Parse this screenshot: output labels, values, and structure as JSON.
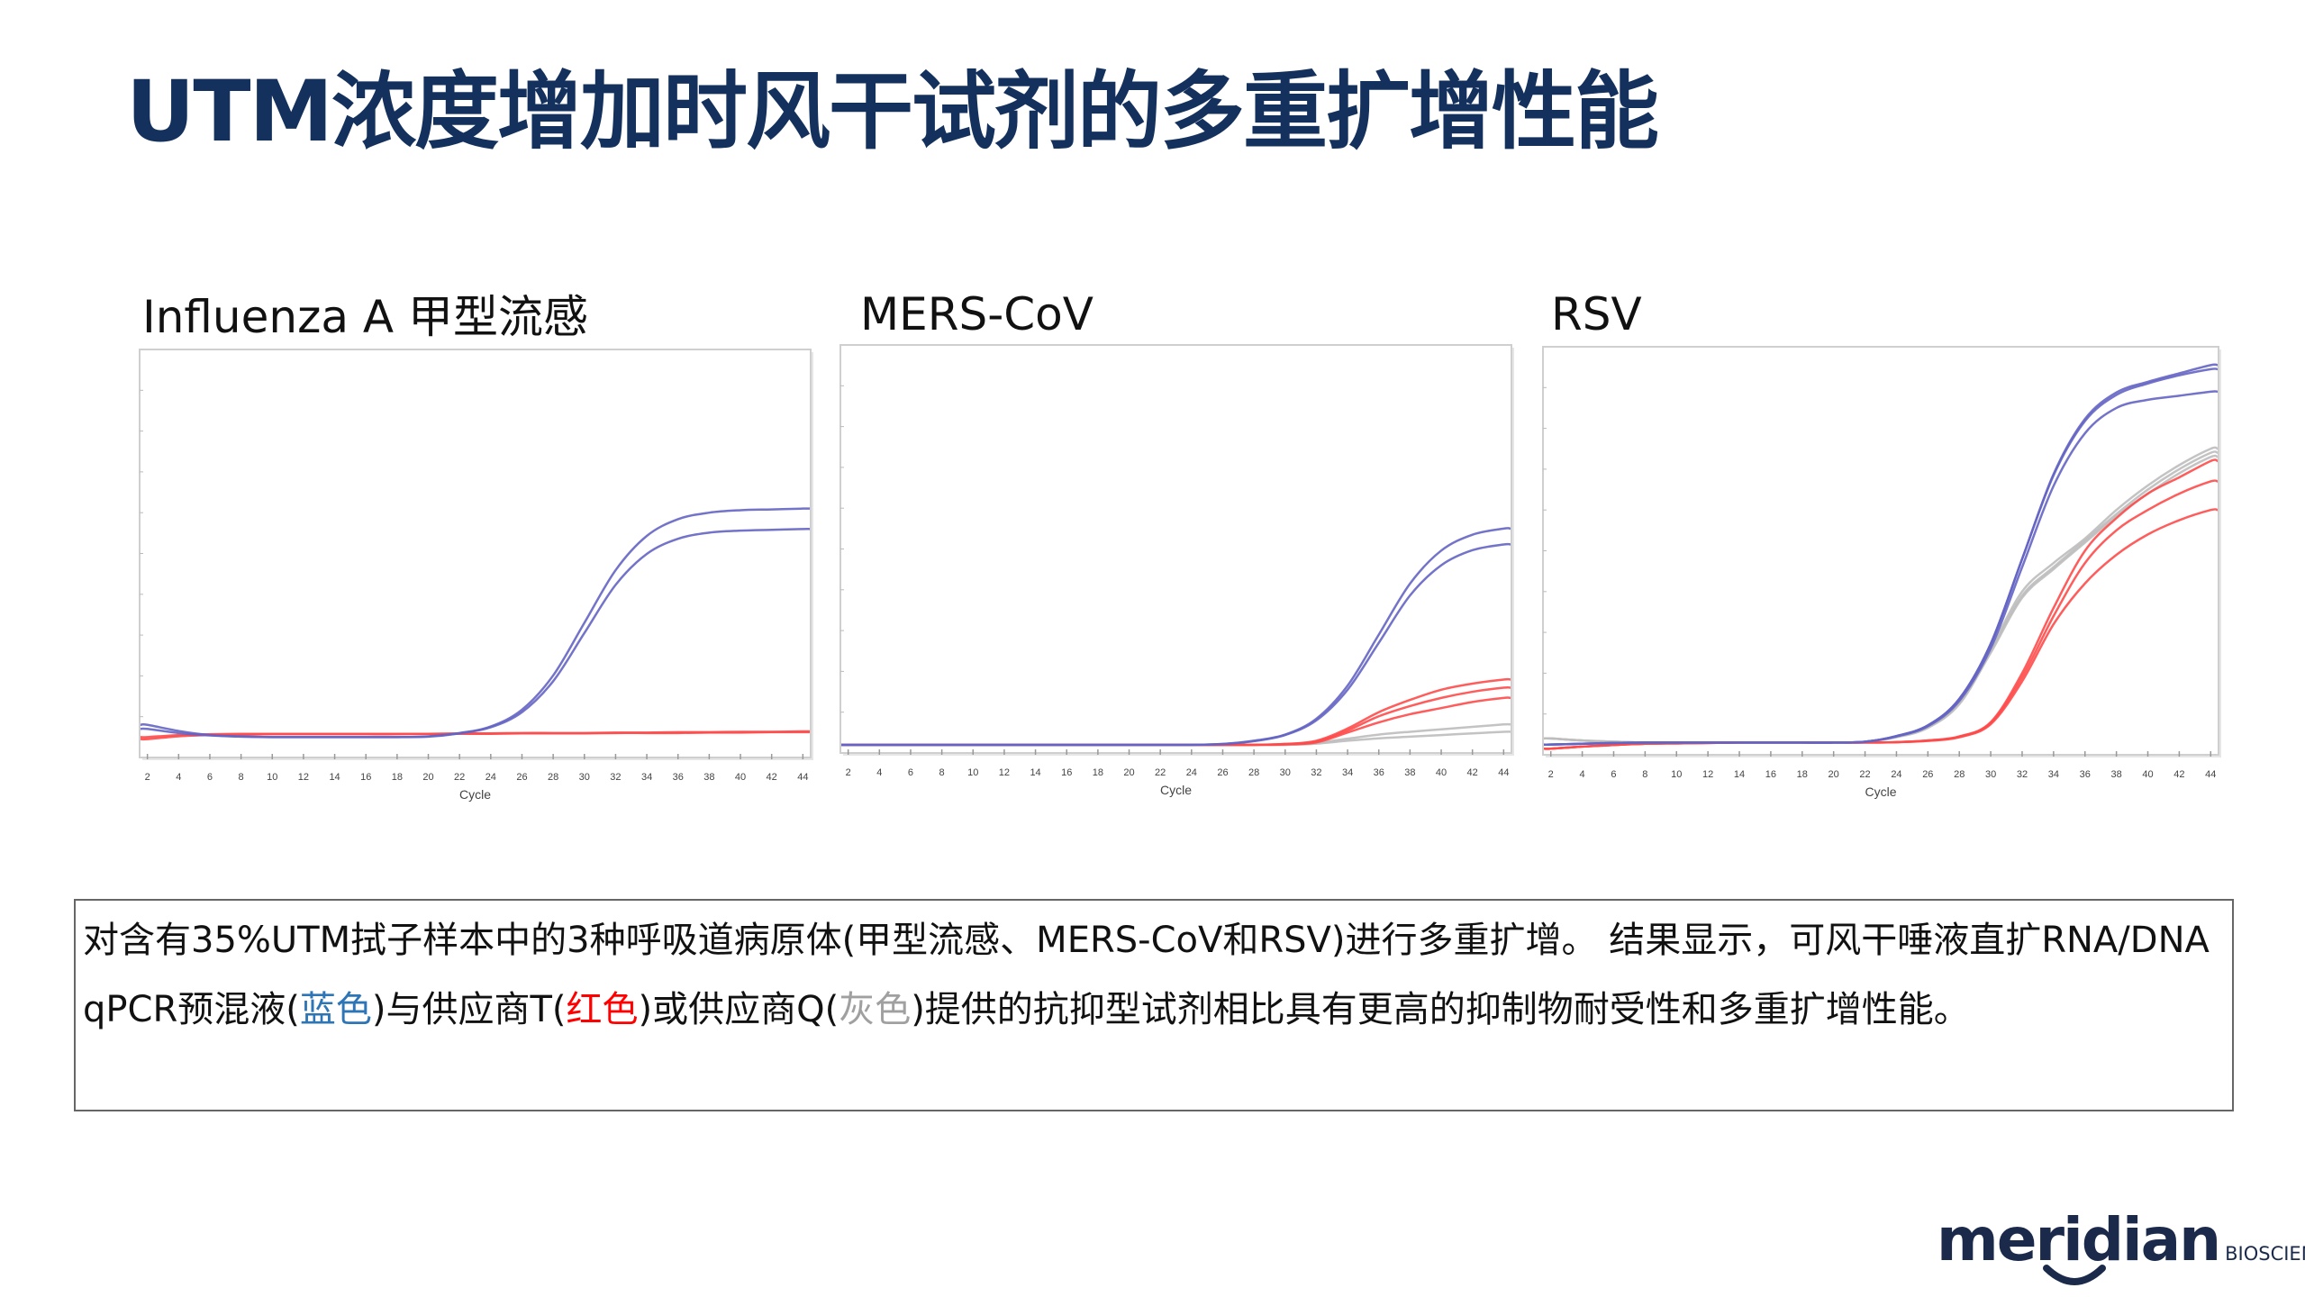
{
  "title": "UTM浓度增加时风干试剂的多重扩增性能",
  "colors": {
    "title": "#13315c",
    "blue_series": "#6464c4",
    "red_series": "#ff4a4a",
    "gray_series": "#bdbdbd",
    "blue_text": "#2e75b6",
    "red_text": "#ff0000",
    "gray_text": "#a0a0a0"
  },
  "chart_data": [
    {
      "type": "line",
      "title": "Influenza A 甲型流感",
      "xlabel": "Cycle",
      "xticks": [
        "2",
        "4",
        "6",
        "8",
        "10",
        "12",
        "14",
        "16",
        "18",
        "20",
        "22",
        "24",
        "26",
        "28",
        "30",
        "32",
        "34",
        "36",
        "38",
        "40",
        "42",
        "44"
      ],
      "xlim": [
        1.5,
        44.5
      ],
      "ylim": [
        0,
        1
      ],
      "grid": false,
      "x": [
        2,
        4,
        6,
        8,
        10,
        12,
        14,
        16,
        18,
        20,
        22,
        24,
        26,
        28,
        30,
        32,
        34,
        36,
        38,
        40,
        42,
        44
      ],
      "series": [
        {
          "color": "red",
          "values": [
            0.05,
            0.055,
            0.057,
            0.058,
            0.058,
            0.058,
            0.058,
            0.058,
            0.058,
            0.058,
            0.059,
            0.059,
            0.06,
            0.06,
            0.06,
            0.061,
            0.061,
            0.062,
            0.062,
            0.063,
            0.063,
            0.064
          ]
        },
        {
          "color": "red",
          "values": [
            0.045,
            0.052,
            0.055,
            0.056,
            0.057,
            0.057,
            0.057,
            0.057,
            0.057,
            0.058,
            0.058,
            0.058,
            0.059,
            0.059,
            0.059,
            0.06,
            0.06,
            0.06,
            0.061,
            0.061,
            0.062,
            0.062
          ]
        },
        {
          "color": "blue",
          "values": [
            0.08,
            0.065,
            0.055,
            0.052,
            0.05,
            0.05,
            0.05,
            0.05,
            0.05,
            0.052,
            0.06,
            0.076,
            0.117,
            0.201,
            0.33,
            0.459,
            0.543,
            0.584,
            0.6,
            0.606,
            0.608,
            0.61
          ]
        },
        {
          "color": "blue",
          "values": [
            0.07,
            0.06,
            0.054,
            0.051,
            0.05,
            0.05,
            0.05,
            0.05,
            0.05,
            0.051,
            0.059,
            0.074,
            0.111,
            0.187,
            0.305,
            0.423,
            0.499,
            0.536,
            0.551,
            0.556,
            0.558,
            0.56
          ]
        }
      ]
    },
    {
      "type": "line",
      "title": "MERS-CoV",
      "xlabel": "Cycle",
      "xticks": [
        "2",
        "4",
        "6",
        "8",
        "10",
        "12",
        "14",
        "16",
        "18",
        "20",
        "22",
        "24",
        "26",
        "28",
        "30",
        "32",
        "34",
        "36",
        "38",
        "40",
        "42",
        "44"
      ],
      "xlim": [
        1.5,
        44.5
      ],
      "ylim": [
        0,
        1
      ],
      "grid": false,
      "x": [
        2,
        4,
        6,
        8,
        10,
        12,
        14,
        16,
        18,
        20,
        22,
        24,
        26,
        28,
        30,
        32,
        34,
        36,
        38,
        40,
        42,
        44
      ],
      "series": [
        {
          "color": "gray",
          "values": [
            0.02,
            0.02,
            0.02,
            0.02,
            0.02,
            0.02,
            0.02,
            0.02,
            0.02,
            0.02,
            0.02,
            0.02,
            0.02,
            0.02,
            0.02,
            0.025,
            0.035,
            0.045,
            0.052,
            0.058,
            0.064,
            0.07
          ]
        },
        {
          "color": "gray",
          "values": [
            0.02,
            0.02,
            0.02,
            0.02,
            0.02,
            0.02,
            0.02,
            0.02,
            0.02,
            0.02,
            0.02,
            0.02,
            0.02,
            0.02,
            0.02,
            0.023,
            0.03,
            0.036,
            0.04,
            0.044,
            0.048,
            0.052
          ]
        },
        {
          "color": "red",
          "values": [
            0.02,
            0.02,
            0.02,
            0.02,
            0.02,
            0.02,
            0.02,
            0.02,
            0.02,
            0.02,
            0.02,
            0.02,
            0.02,
            0.02,
            0.022,
            0.03,
            0.06,
            0.1,
            0.13,
            0.155,
            0.17,
            0.18
          ]
        },
        {
          "color": "red",
          "values": [
            0.02,
            0.02,
            0.02,
            0.02,
            0.02,
            0.02,
            0.02,
            0.02,
            0.02,
            0.02,
            0.02,
            0.02,
            0.02,
            0.02,
            0.022,
            0.028,
            0.055,
            0.09,
            0.115,
            0.135,
            0.15,
            0.16
          ]
        },
        {
          "color": "red",
          "values": [
            0.02,
            0.02,
            0.02,
            0.02,
            0.02,
            0.02,
            0.02,
            0.02,
            0.02,
            0.02,
            0.02,
            0.02,
            0.02,
            0.02,
            0.021,
            0.026,
            0.05,
            0.075,
            0.095,
            0.11,
            0.125,
            0.135
          ]
        },
        {
          "color": "blue",
          "values": [
            0.02,
            0.02,
            0.02,
            0.02,
            0.02,
            0.02,
            0.02,
            0.02,
            0.02,
            0.02,
            0.02,
            0.02,
            0.022,
            0.03,
            0.045,
            0.084,
            0.165,
            0.29,
            0.415,
            0.496,
            0.535,
            0.55
          ]
        },
        {
          "color": "blue",
          "values": [
            0.02,
            0.02,
            0.02,
            0.02,
            0.02,
            0.02,
            0.02,
            0.02,
            0.02,
            0.02,
            0.02,
            0.02,
            0.022,
            0.029,
            0.044,
            0.08,
            0.155,
            0.27,
            0.386,
            0.46,
            0.497,
            0.511
          ]
        }
      ]
    },
    {
      "type": "line",
      "title": "RSV",
      "xlabel": "Cycle",
      "xticks": [
        "2",
        "4",
        "6",
        "8",
        "10",
        "12",
        "14",
        "16",
        "18",
        "20",
        "22",
        "24",
        "26",
        "28",
        "30",
        "32",
        "34",
        "36",
        "38",
        "40",
        "42",
        "44"
      ],
      "xlim": [
        1.5,
        44.5
      ],
      "ylim": [
        0,
        1
      ],
      "grid": false,
      "x": [
        2,
        4,
        6,
        8,
        10,
        12,
        14,
        16,
        18,
        20,
        22,
        24,
        26,
        28,
        30,
        32,
        34,
        36,
        38,
        40,
        42,
        44
      ],
      "series": [
        {
          "color": "gray",
          "values": [
            0.04,
            0.035,
            0.032,
            0.03,
            0.03,
            0.03,
            0.03,
            0.03,
            0.03,
            0.03,
            0.032,
            0.045,
            0.07,
            0.13,
            0.26,
            0.4,
            0.47,
            0.53,
            0.6,
            0.66,
            0.71,
            0.75
          ]
        },
        {
          "color": "gray",
          "values": [
            0.04,
            0.035,
            0.032,
            0.03,
            0.03,
            0.03,
            0.03,
            0.03,
            0.03,
            0.03,
            0.032,
            0.044,
            0.068,
            0.127,
            0.255,
            0.39,
            0.46,
            0.525,
            0.59,
            0.65,
            0.7,
            0.74
          ]
        },
        {
          "color": "gray",
          "values": [
            0.04,
            0.035,
            0.032,
            0.03,
            0.03,
            0.03,
            0.03,
            0.03,
            0.03,
            0.03,
            0.032,
            0.043,
            0.066,
            0.124,
            0.25,
            0.385,
            0.455,
            0.52,
            0.585,
            0.64,
            0.69,
            0.73
          ]
        },
        {
          "color": "red",
          "values": [
            0.015,
            0.02,
            0.024,
            0.027,
            0.028,
            0.029,
            0.03,
            0.03,
            0.03,
            0.03,
            0.03,
            0.031,
            0.035,
            0.045,
            0.08,
            0.2,
            0.36,
            0.5,
            0.58,
            0.64,
            0.68,
            0.72
          ]
        },
        {
          "color": "red",
          "values": [
            0.015,
            0.02,
            0.024,
            0.027,
            0.028,
            0.029,
            0.03,
            0.03,
            0.03,
            0.03,
            0.03,
            0.031,
            0.035,
            0.044,
            0.078,
            0.19,
            0.34,
            0.47,
            0.55,
            0.6,
            0.64,
            0.67
          ]
        },
        {
          "color": "red",
          "values": [
            0.015,
            0.02,
            0.024,
            0.027,
            0.028,
            0.029,
            0.03,
            0.03,
            0.03,
            0.03,
            0.03,
            0.031,
            0.034,
            0.043,
            0.075,
            0.18,
            0.32,
            0.42,
            0.49,
            0.54,
            0.575,
            0.6
          ]
        },
        {
          "color": "blue",
          "values": [
            0.025,
            0.027,
            0.029,
            0.03,
            0.03,
            0.03,
            0.03,
            0.03,
            0.03,
            0.03,
            0.032,
            0.046,
            0.072,
            0.137,
            0.272,
            0.48,
            0.688,
            0.823,
            0.888,
            0.914,
            0.935,
            0.955
          ]
        },
        {
          "color": "blue",
          "values": [
            0.025,
            0.027,
            0.029,
            0.03,
            0.03,
            0.03,
            0.03,
            0.03,
            0.03,
            0.03,
            0.032,
            0.046,
            0.072,
            0.137,
            0.272,
            0.48,
            0.685,
            0.818,
            0.882,
            0.91,
            0.93,
            0.945
          ]
        },
        {
          "color": "blue",
          "values": [
            0.025,
            0.027,
            0.029,
            0.03,
            0.03,
            0.03,
            0.03,
            0.03,
            0.03,
            0.03,
            0.032,
            0.045,
            0.07,
            0.132,
            0.261,
            0.46,
            0.659,
            0.788,
            0.85,
            0.87,
            0.88,
            0.89
          ]
        }
      ]
    }
  ],
  "description": {
    "part1": "对含有35%UTM拭子样本中的3种呼吸道病原体(甲型流感、MERS-CoV和RSV)进行多重扩增。 结果显示，可风干唾液直扩RNA/DNA qPCR预混液(",
    "blue_word": "蓝色",
    "part2": ")与供应商T(",
    "red_word": "红色",
    "part3": ")或供应商Q(",
    "gray_word": "灰色",
    "part4": ")提供的抗抑型试剂相比具有更高的抑制物耐受性和多重扩增性能。"
  },
  "logo": {
    "main": "meridian",
    "sub": "BIOSCIENCE™"
  }
}
